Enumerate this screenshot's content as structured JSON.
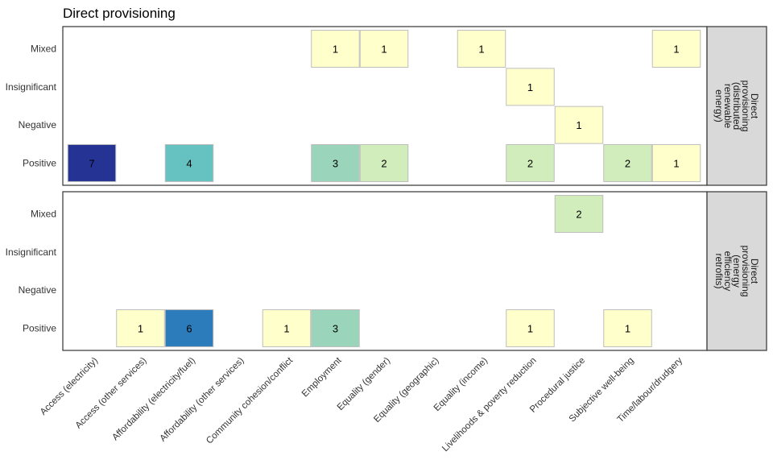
{
  "chart_data": {
    "type": "heatmap",
    "title": "Direct provisioning",
    "categories": [
      "Access (electricity)",
      "Access (other services)",
      "Affordability (electricity/fuel)",
      "Affordability (other services)",
      "Community cohesion/conflict",
      "Employment",
      "Equality (gender)",
      "Equality (geographic)",
      "Equality (income)",
      "Livelihoods & poverty reduction",
      "Procedural justice",
      "Subjective well-being",
      "Time/labour/drudgery"
    ],
    "y_levels": [
      "Mixed",
      "Insignificant",
      "Negative",
      "Positive"
    ],
    "colors": {
      "1": "#ffffcc",
      "2": "#d2edbc",
      "3": "#99d4bb",
      "4": "#66c2c1",
      "6": "#2c7bbb",
      "7": "#253494"
    },
    "grid_color": "#bdbdbd",
    "strip_color": "#d9d9d9",
    "panels": [
      {
        "strip_lines": [
          "Direct",
          "provisioning",
          "(distributed",
          "renewable",
          "energy)"
        ],
        "cells": [
          {
            "x": "Employment",
            "y": "Mixed",
            "value": 1,
            "label": "1"
          },
          {
            "x": "Equality (gender)",
            "y": "Mixed",
            "value": 1,
            "label": "1"
          },
          {
            "x": "Equality (income)",
            "y": "Mixed",
            "value": 1,
            "label": "1"
          },
          {
            "x": "Time/labour/drudgery",
            "y": "Mixed",
            "value": 1,
            "label": "1"
          },
          {
            "x": "Livelihoods & poverty reduction",
            "y": "Insignificant",
            "value": 1,
            "label": "1"
          },
          {
            "x": "Procedural justice",
            "y": "Negative",
            "value": 1,
            "label": "1"
          },
          {
            "x": "Access (electricity)",
            "y": "Positive",
            "value": 7,
            "label": "7"
          },
          {
            "x": "Affordability (electricity/fuel)",
            "y": "Positive",
            "value": 4,
            "label": "4"
          },
          {
            "x": "Employment",
            "y": "Positive",
            "value": 3,
            "label": "3"
          },
          {
            "x": "Equality (gender)",
            "y": "Positive",
            "value": 2,
            "label": "2"
          },
          {
            "x": "Livelihoods & poverty reduction",
            "y": "Positive",
            "value": 2,
            "label": "2"
          },
          {
            "x": "Subjective well-being",
            "y": "Positive",
            "value": 2,
            "label": "2"
          },
          {
            "x": "Time/labour/drudgery",
            "y": "Positive",
            "value": 1,
            "label": "1"
          }
        ]
      },
      {
        "strip_lines": [
          "Direct",
          "provisioning",
          "(energy",
          "efficiency",
          "retrofits)"
        ],
        "cells": [
          {
            "x": "Procedural justice",
            "y": "Mixed",
            "value": 2,
            "label": "2"
          },
          {
            "x": "Access (other services)",
            "y": "Positive",
            "value": 1,
            "label": "1"
          },
          {
            "x": "Affordability (electricity/fuel)",
            "y": "Positive",
            "value": 6,
            "label": "6"
          },
          {
            "x": "Community cohesion/conflict",
            "y": "Positive",
            "value": 1,
            "label": "1"
          },
          {
            "x": "Employment",
            "y": "Positive",
            "value": 3,
            "label": "3"
          },
          {
            "x": "Livelihoods & poverty reduction",
            "y": "Positive",
            "value": 1,
            "label": "1"
          },
          {
            "x": "Subjective well-being",
            "y": "Positive",
            "value": 1,
            "label": "1"
          }
        ]
      }
    ]
  }
}
